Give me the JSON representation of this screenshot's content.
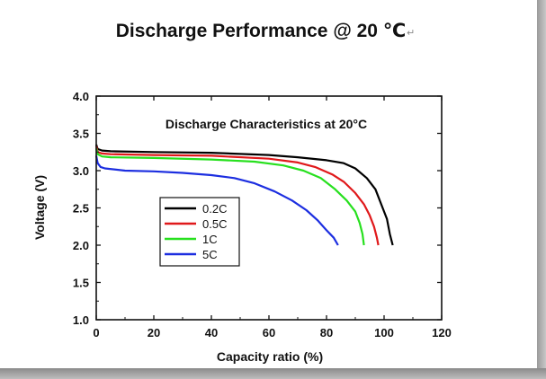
{
  "page": {
    "title": "Discharge Performance @ 20 ℃",
    "paragraph_mark": "↵"
  },
  "chart_data": {
    "type": "line",
    "title": "Discharge Characteristics at 20°C",
    "xlabel": "Capacity ratio (%)",
    "ylabel": "Voltage (V)",
    "xlim": [
      0,
      120
    ],
    "ylim": [
      1.0,
      4.0
    ],
    "xticks": [
      0,
      20,
      40,
      60,
      80,
      100,
      120
    ],
    "yticks": [
      1.0,
      1.5,
      2.0,
      2.5,
      3.0,
      3.5,
      4.0
    ],
    "xtick_labels": [
      "0",
      "20",
      "40",
      "60",
      "80",
      "100",
      "120"
    ],
    "ytick_labels": [
      "1.0",
      "1.5",
      "2.0",
      "2.5",
      "3.0",
      "3.5",
      "4.0"
    ],
    "grid": false,
    "legend_position": "center-left",
    "series": [
      {
        "name": "0.2C",
        "color": "#000000",
        "points": [
          [
            0,
            3.35
          ],
          [
            0.5,
            3.29
          ],
          [
            2,
            3.27
          ],
          [
            5,
            3.26
          ],
          [
            20,
            3.25
          ],
          [
            40,
            3.24
          ],
          [
            60,
            3.21
          ],
          [
            70,
            3.18
          ],
          [
            80,
            3.14
          ],
          [
            86,
            3.1
          ],
          [
            90,
            3.03
          ],
          [
            94,
            2.9
          ],
          [
            97,
            2.75
          ],
          [
            99,
            2.55
          ],
          [
            101,
            2.35
          ],
          [
            102,
            2.15
          ],
          [
            103,
            2.0
          ]
        ]
      },
      {
        "name": "0.5C",
        "color": "#e0191b",
        "points": [
          [
            0,
            3.33
          ],
          [
            0.5,
            3.25
          ],
          [
            2,
            3.23
          ],
          [
            5,
            3.22
          ],
          [
            20,
            3.21
          ],
          [
            40,
            3.2
          ],
          [
            60,
            3.16
          ],
          [
            70,
            3.11
          ],
          [
            76,
            3.05
          ],
          [
            82,
            2.95
          ],
          [
            86,
            2.85
          ],
          [
            90,
            2.7
          ],
          [
            93,
            2.55
          ],
          [
            95,
            2.4
          ],
          [
            96.5,
            2.25
          ],
          [
            97.5,
            2.1
          ],
          [
            98,
            2.0
          ]
        ]
      },
      {
        "name": "1C",
        "color": "#27e01e",
        "points": [
          [
            0,
            3.3
          ],
          [
            0.5,
            3.22
          ],
          [
            2,
            3.19
          ],
          [
            5,
            3.18
          ],
          [
            20,
            3.17
          ],
          [
            40,
            3.15
          ],
          [
            55,
            3.12
          ],
          [
            65,
            3.07
          ],
          [
            72,
            3.0
          ],
          [
            78,
            2.9
          ],
          [
            83,
            2.75
          ],
          [
            87,
            2.6
          ],
          [
            90,
            2.45
          ],
          [
            91.5,
            2.3
          ],
          [
            92.5,
            2.15
          ],
          [
            93,
            2.0
          ]
        ]
      },
      {
        "name": "5C",
        "color": "#1c2ee0",
        "points": [
          [
            0,
            3.2
          ],
          [
            0.5,
            3.1
          ],
          [
            1.5,
            3.05
          ],
          [
            3,
            3.03
          ],
          [
            10,
            3.0
          ],
          [
            20,
            2.99
          ],
          [
            30,
            2.97
          ],
          [
            40,
            2.94
          ],
          [
            48,
            2.9
          ],
          [
            55,
            2.83
          ],
          [
            62,
            2.72
          ],
          [
            68,
            2.6
          ],
          [
            73,
            2.47
          ],
          [
            77,
            2.33
          ],
          [
            80,
            2.2
          ],
          [
            82.5,
            2.1
          ],
          [
            84,
            2.0
          ]
        ]
      }
    ]
  }
}
